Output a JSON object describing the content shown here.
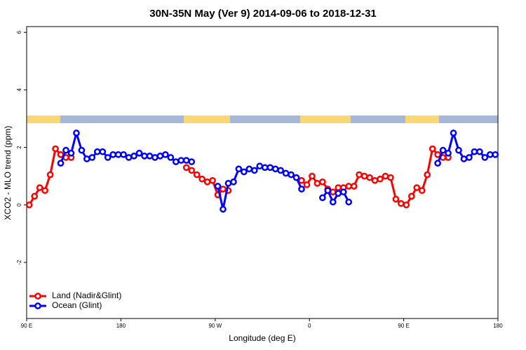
{
  "chart_data": {
    "type": "line",
    "title": "30N-35N May (Ver 9)   2014-09-06 to 2018-12-31",
    "x_label": "Longitude (deg E)",
    "y_label": "XCO2 - MLO trend (ppm)",
    "xlim": [
      -270,
      180
    ],
    "xticks": [
      {
        "value": -270,
        "label": "90 E"
      },
      {
        "value": -180,
        "label": "180"
      },
      {
        "value": -90,
        "label": "90 W"
      },
      0,
      {
        "value": 90,
        "label": "90 E"
      },
      180
    ],
    "ylim": [
      -3.95,
      6.2
    ],
    "yticks": [
      -2,
      0,
      2,
      4,
      6
    ],
    "legend": "bottom-left",
    "x": [
      -267.5,
      -262.5,
      -257.5,
      -252.5,
      -247.5,
      -242.5,
      -237.5,
      -232.5,
      -227.5,
      -222.5,
      -217.5,
      -212.5,
      -207.5,
      -202.5,
      -197.5,
      -192.5,
      -187.5,
      -182.5,
      -177.5,
      -172.5,
      -167.5,
      -162.5,
      -157.5,
      -152.5,
      -147.5,
      -142.5,
      -137.5,
      -132.5,
      -127.5,
      -122.5,
      -117.5,
      -112.5,
      -107.5,
      -102.5,
      -97.5,
      -92.5,
      -87.5,
      -82.5,
      -77.5,
      -72.5,
      -67.5,
      -62.5,
      -57.5,
      -52.5,
      -47.5,
      -42.5,
      -37.5,
      -32.5,
      -27.5,
      -22.5,
      -17.5,
      -12.5,
      -7.5,
      -2.5,
      2.5,
      7.5,
      12.5,
      17.5,
      22.5,
      27.5,
      32.5,
      37.5,
      42.5,
      47.5,
      52.5,
      57.5,
      62.5,
      67.5,
      72.5,
      77.5,
      82.5,
      87.5,
      92.5,
      97.5,
      102.5,
      107.5,
      112.5,
      117.5,
      122.5,
      127.5,
      132.5,
      137.5,
      142.5,
      147.5,
      152.5,
      157.5,
      162.5,
      167.5,
      172.5,
      177.5
    ],
    "series": [
      {
        "name": "Land (Nadir&Glint)",
        "color": "#ff0000",
        "values": [
          0,
          0.3,
          0.6,
          0.5,
          1.05,
          1.95,
          1.75,
          1.65,
          1.65,
          null,
          null,
          null,
          null,
          null,
          null,
          null,
          null,
          null,
          null,
          null,
          null,
          null,
          null,
          null,
          null,
          null,
          null,
          null,
          null,
          null,
          1.3,
          1.2,
          1.05,
          0.9,
          0.8,
          0.85,
          0.35,
          0.55,
          0.5,
          null,
          null,
          null,
          null,
          null,
          null,
          null,
          null,
          null,
          null,
          null,
          null,
          null,
          0.85,
          0.7,
          1.0,
          0.75,
          0.8,
          0.55,
          0.45,
          0.6,
          0.6,
          0.65,
          0.65,
          1.05,
          1.0,
          0.95,
          0.85,
          0.9,
          1.0,
          0.95,
          0.2,
          0.05,
          0.0,
          0.3,
          0.6,
          0.5,
          1.05,
          1.95,
          1.75,
          1.65,
          1.65,
          null,
          null,
          null,
          null,
          null,
          null,
          null,
          null,
          null
        ]
      },
      {
        "name": "Ocean (Glint)",
        "color": "#0000ff",
        "values": [
          null,
          null,
          null,
          null,
          null,
          null,
          1.45,
          1.9,
          1.8,
          2.5,
          1.9,
          1.6,
          1.65,
          1.85,
          1.85,
          1.65,
          1.75,
          1.75,
          1.75,
          1.65,
          1.7,
          1.8,
          1.7,
          1.7,
          1.65,
          1.7,
          1.75,
          1.65,
          1.5,
          1.55,
          1.55,
          1.5,
          null,
          null,
          null,
          null,
          0.65,
          -0.15,
          0.75,
          0.8,
          1.25,
          1.15,
          1.25,
          1.2,
          1.35,
          1.3,
          1.3,
          1.25,
          1.2,
          1.1,
          1.05,
          0.95,
          0.55,
          null,
          null,
          null,
          0.25,
          0.5,
          0.1,
          0.4,
          0.45,
          0.1,
          null,
          null,
          null,
          null,
          null,
          null,
          null,
          null,
          null,
          null,
          null,
          null,
          null,
          null,
          null,
          null,
          1.45,
          1.9,
          1.8,
          2.5,
          1.9,
          1.6,
          1.65,
          1.85,
          1.85,
          1.65,
          1.75,
          1.75
        ]
      }
    ]
  }
}
